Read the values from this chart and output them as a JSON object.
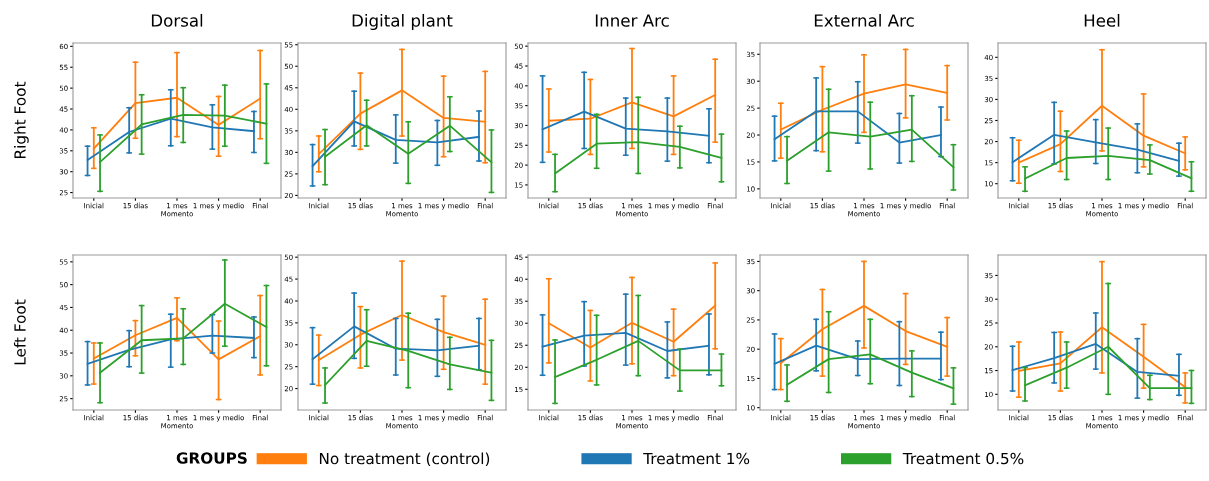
{
  "chart_data": [
    {
      "type": "line",
      "title": "Dorsal",
      "ylabel": "Right Foot",
      "xlabel": "Momento",
      "legend": "bottom",
      "legend_title": "GROUPS",
      "categories": [
        "Inicial",
        "15 días",
        "1 mes",
        "1 mes y medio",
        "Final"
      ],
      "ylim": [
        23.7,
        60.8
      ],
      "yticks": [
        25,
        30,
        35,
        40,
        45,
        50,
        55,
        60
      ],
      "series": [
        {
          "name": "No treatment (control)",
          "color": "#ff7f0e",
          "values": [
            35.5,
            46.4,
            47.7,
            41.2,
            47.5
          ],
          "errors": [
            [
              30.8,
              40.5
            ],
            [
              38,
              56.2
            ],
            [
              38.4,
              58.5
            ],
            [
              33.7,
              48
            ],
            [
              37.9,
              59
            ]
          ]
        },
        {
          "name": "Treatment 1%",
          "color": "#1f77b4",
          "values": [
            32.8,
            39.5,
            42.7,
            40.6,
            39.7
          ],
          "errors": [
            [
              29.1,
              36.1
            ],
            [
              34.5,
              45.3
            ],
            [
              36.2,
              49.6
            ],
            [
              35.4,
              46
            ],
            [
              34.6,
              44.4
            ]
          ]
        },
        {
          "name": "Treatment 0.5%",
          "color": "#2ca02c",
          "values": [
            32.3,
            41.3,
            43.6,
            43.4,
            41.5
          ],
          "errors": [
            [
              25.3,
              38.8
            ],
            [
              34.2,
              48.4
            ],
            [
              37,
              50.1
            ],
            [
              36.1,
              50.7
            ],
            [
              32,
              51
            ]
          ]
        }
      ]
    },
    {
      "type": "line",
      "title": "Digital plant",
      "xlabel": "Momento",
      "categories": [
        "Inicial",
        "15 días",
        "1 mes",
        "1 mes y medio",
        "Final"
      ],
      "ylim": [
        19.4,
        55.4
      ],
      "yticks": [
        20,
        25,
        30,
        35,
        40,
        45,
        50,
        55
      ],
      "series": [
        {
          "color": "#ff7f0e",
          "values": [
            29.6,
            39,
            44.4,
            38,
            37.1
          ],
          "errors": [
            [
              25.5,
              33.8
            ],
            [
              30.7,
              48.4
            ],
            [
              33.8,
              53.9
            ],
            [
              29,
              47.7
            ],
            [
              27.6,
              48.8
            ]
          ]
        },
        {
          "color": "#1f77b4",
          "values": [
            26.8,
            37.2,
            32.9,
            32.3,
            33.6
          ],
          "errors": [
            [
              22.2,
              31.8
            ],
            [
              31.5,
              44.2
            ],
            [
              27.5,
              38.7
            ],
            [
              27,
              37.4
            ],
            [
              28,
              39.6
            ]
          ]
        },
        {
          "color": "#2ca02c",
          "values": [
            29,
            36.3,
            29.7,
            36.2,
            27.7
          ],
          "errors": [
            [
              22.5,
              35.3
            ],
            [
              31.5,
              42.1
            ],
            [
              22.8,
              37.1
            ],
            [
              30.2,
              42.9
            ],
            [
              20.7,
              35.2
            ]
          ]
        }
      ]
    },
    {
      "type": "line",
      "title": "Inner Arc",
      "xlabel": "Momento",
      "categories": [
        "Inicial",
        "15 días",
        "1 mes",
        "1 mes y medio",
        "Final"
      ],
      "ylim": [
        11.7,
        50.8
      ],
      "yticks": [
        15,
        20,
        25,
        30,
        35,
        40,
        45,
        50
      ],
      "series": [
        {
          "color": "#ff7f0e",
          "values": [
            31.2,
            31.7,
            35.8,
            32.3,
            37.7
          ],
          "errors": [
            [
              23.3,
              39.2
            ],
            [
              22.7,
              41.6
            ],
            [
              24.2,
              49.4
            ],
            [
              22.7,
              42.5
            ],
            [
              25.8,
              46.7
            ]
          ]
        },
        {
          "color": "#1f77b4",
          "values": [
            29,
            33.5,
            29.2,
            28.5,
            27.4
          ],
          "errors": [
            [
              20.7,
              42.5
            ],
            [
              24.2,
              43.4
            ],
            [
              22.5,
              36.9
            ],
            [
              21,
              36.9
            ],
            [
              20.6,
              34.2
            ]
          ]
        },
        {
          "color": "#2ca02c",
          "values": [
            17.9,
            25.4,
            25.8,
            24.6,
            21.8
          ],
          "errors": [
            [
              13.3,
              22.7
            ],
            [
              19.2,
              32.8
            ],
            [
              17.9,
              37.1
            ],
            [
              19.3,
              29.8
            ],
            [
              15.8,
              27.8
            ]
          ]
        }
      ]
    },
    {
      "type": "line",
      "title": "External Arc",
      "xlabel": "Momento",
      "categories": [
        "Inicial",
        "15 días",
        "1 mes",
        "1 mes y medio",
        "Final"
      ],
      "ylim": [
        8.3,
        37.1
      ],
      "yticks": [
        10,
        15,
        20,
        25,
        30,
        35
      ],
      "series": [
        {
          "color": "#ff7f0e",
          "values": [
            21,
            24.7,
            27.7,
            29.4,
            27.8
          ],
          "errors": [
            [
              15.7,
              25.9
            ],
            [
              16.9,
              32.7
            ],
            [
              20.5,
              34.9
            ],
            [
              23.2,
              35.9
            ],
            [
              22.8,
              32.9
            ]
          ]
        },
        {
          "color": "#1f77b4",
          "values": [
            19.2,
            24.4,
            24.4,
            18.6,
            20
          ],
          "errors": [
            [
              15.2,
              23.5
            ],
            [
              17.1,
              30.6
            ],
            [
              18.5,
              29.9
            ],
            [
              14.8,
              24
            ],
            [
              16,
              25.2
            ]
          ]
        },
        {
          "color": "#2ca02c",
          "values": [
            15.2,
            20.5,
            19.7,
            21,
            14
          ],
          "errors": [
            [
              11,
              19.7
            ],
            [
              13.3,
              28.5
            ],
            [
              13.7,
              26.1
            ],
            [
              15.1,
              27.3
            ],
            [
              9.8,
              18.2
            ]
          ]
        }
      ]
    },
    {
      "type": "line",
      "title": "Heel",
      "xlabel": "Momento",
      "categories": [
        "Inicial",
        "15 días",
        "1 mes",
        "1 mes y medio",
        "Final"
      ],
      "ylim": [
        6.6,
        43.4
      ],
      "yticks": [
        10,
        15,
        20,
        25,
        30,
        35,
        40
      ],
      "series": [
        {
          "color": "#ff7f0e",
          "values": [
            15,
            19.4,
            28.5,
            21.4,
            17.2
          ],
          "errors": [
            [
              10.1,
              20.3
            ],
            [
              12.9,
              27.2
            ],
            [
              17.8,
              41.8
            ],
            [
              14,
              31.3
            ],
            [
              13.3,
              21.1
            ]
          ]
        },
        {
          "color": "#1f77b4",
          "values": [
            15.1,
            21.6,
            19.8,
            18.1,
            15.4
          ],
          "errors": [
            [
              10.7,
              20.9
            ],
            [
              14.7,
              29.3
            ],
            [
              14.8,
              25.2
            ],
            [
              12.6,
              24.2
            ],
            [
              11.8,
              19.6
            ]
          ]
        },
        {
          "color": "#2ca02c",
          "values": [
            11.2,
            16.1,
            16.6,
            15.6,
            11.3
          ],
          "errors": [
            [
              8.2,
              14
            ],
            [
              11,
              22.5
            ],
            [
              11,
              23.2
            ],
            [
              12.3,
              19.2
            ],
            [
              8.2,
              15.2
            ]
          ]
        }
      ]
    },
    {
      "type": "line",
      "ylabel": "Left Foot",
      "xlabel": "Momento",
      "categories": [
        "Inicial",
        "15 días",
        "1 mes",
        "1 mes y medio",
        "Final"
      ],
      "ylim": [
        22.5,
        56.5
      ],
      "yticks": [
        25,
        30,
        35,
        40,
        45,
        50,
        55
      ],
      "series": [
        {
          "color": "#ff7f0e",
          "values": [
            33.8,
            38.9,
            42.7,
            33.6,
            38.7
          ],
          "errors": [
            [
              28.2,
              37.2
            ],
            [
              34.4,
              42.1
            ],
            [
              37.7,
              47.1
            ],
            [
              24.8,
              42
            ],
            [
              30.2,
              47.6
            ]
          ]
        },
        {
          "color": "#1f77b4",
          "values": [
            32.6,
            35.7,
            38,
            38.8,
            38.3
          ],
          "errors": [
            [
              28,
              37.5
            ],
            [
              32,
              39.9
            ],
            [
              31.9,
              43.5
            ],
            [
              35,
              43.4
            ],
            [
              34,
              42.9
            ]
          ]
        },
        {
          "color": "#2ca02c",
          "values": [
            30.7,
            37.8,
            38.2,
            45.8,
            40.7
          ],
          "errors": [
            [
              24.1,
              37.2
            ],
            [
              30.6,
              45.4
            ],
            [
              32.5,
              44.7
            ],
            [
              36.5,
              55.4
            ],
            [
              32.2,
              49.8
            ]
          ]
        }
      ]
    },
    {
      "type": "line",
      "xlabel": "Momento",
      "categories": [
        "Inicial",
        "15 días",
        "1 mes",
        "1 mes y medio",
        "Final"
      ],
      "ylim": [
        15.1,
        50.5
      ],
      "yticks": [
        20,
        25,
        30,
        35,
        40,
        45,
        50
      ],
      "series": [
        {
          "color": "#ff7f0e",
          "values": [
            26.5,
            32.3,
            36.8,
            32.9,
            30
          ],
          "errors": [
            [
              20.7,
              32.2
            ],
            [
              24.7,
              38.7
            ],
            [
              26.5,
              49.1
            ],
            [
              24.4,
              41.1
            ],
            [
              21,
              40.4
            ]
          ]
        },
        {
          "color": "#1f77b4",
          "values": [
            26.7,
            34.2,
            29.1,
            28.7,
            29.8
          ],
          "errors": [
            [
              21,
              33.9
            ],
            [
              26.9,
              41.8
            ],
            [
              23.1,
              36
            ],
            [
              22.8,
              35.8
            ],
            [
              24.3,
              36
            ]
          ]
        },
        {
          "color": "#2ca02c",
          "values": [
            20.8,
            30.9,
            28.6,
            25.5,
            23.6
          ],
          "errors": [
            [
              16.7,
              24.7
            ],
            [
              25.1,
              38
            ],
            [
              20.2,
              37.2
            ],
            [
              19.8,
              31.7
            ],
            [
              17.3,
              31
            ]
          ]
        }
      ]
    },
    {
      "type": "line",
      "xlabel": "Momento",
      "categories": [
        "Inicial",
        "15 días",
        "1 mes",
        "1 mes y medio",
        "Final"
      ],
      "ylim": [
        10.3,
        45.5
      ],
      "yticks": [
        15,
        20,
        25,
        30,
        35,
        40,
        45
      ],
      "series": [
        {
          "color": "#ff7f0e",
          "values": [
            30,
            24.5,
            30.1,
            25.8,
            34
          ],
          "errors": [
            [
              21,
              40.1
            ],
            [
              16.9,
              32.9
            ],
            [
              20.8,
              40.4
            ],
            [
              18.1,
              33.2
            ],
            [
              24.2,
              43.7
            ]
          ]
        },
        {
          "color": "#1f77b4",
          "values": [
            24.7,
            27.2,
            27.8,
            23.7,
            24.9
          ],
          "errors": [
            [
              18.2,
              31.9
            ],
            [
              20.3,
              34.9
            ],
            [
              20.5,
              36.6
            ],
            [
              17.6,
              30.3
            ],
            [
              18.3,
              32.1
            ]
          ]
        },
        {
          "color": "#2ca02c",
          "values": [
            17.8,
            21.7,
            26,
            19.3,
            19.3
          ],
          "errors": [
            [
              11.8,
              26.2
            ],
            [
              16,
              31.8
            ],
            [
              18.1,
              36.3
            ],
            [
              14.6,
              24.1
            ],
            [
              15.8,
              23
            ]
          ]
        }
      ]
    },
    {
      "type": "line",
      "xlabel": "Momento",
      "categories": [
        "Inicial",
        "15 días",
        "1 mes",
        "1 mes y medio",
        "Final"
      ],
      "ylim": [
        9.6,
        36.1
      ],
      "yticks": [
        10,
        15,
        20,
        25,
        30,
        35
      ],
      "series": [
        {
          "color": "#ff7f0e",
          "values": [
            17.6,
            23.4,
            27.4,
            23.1,
            20.4
          ],
          "errors": [
            [
              13.1,
              21.8
            ],
            [
              15.4,
              30.2
            ],
            [
              20.2,
              35
            ],
            [
              17.4,
              29.5
            ],
            [
              15.4,
              25.4
            ]
          ]
        },
        {
          "color": "#1f77b4",
          "values": [
            17.5,
            20.6,
            18.3,
            18.4,
            18.4
          ],
          "errors": [
            [
              13.1,
              22.6
            ],
            [
              16.3,
              25.1
            ],
            [
              15.5,
              21.4
            ],
            [
              13.8,
              24.7
            ],
            [
              14.8,
              22.9
            ]
          ]
        },
        {
          "color": "#2ca02c",
          "values": [
            13.9,
            18.3,
            19.1,
            16,
            13.3
          ],
          "errors": [
            [
              11.1,
              17.3
            ],
            [
              12.6,
              26.4
            ],
            [
              14.1,
              25.1
            ],
            [
              11.9,
              19.7
            ],
            [
              10.6,
              16.8
            ]
          ]
        }
      ]
    },
    {
      "type": "line",
      "xlabel": "Momento",
      "categories": [
        "Inicial",
        "15 días",
        "1 mes",
        "1 mes y medio",
        "Final"
      ],
      "ylim": [
        6.7,
        39.3
      ],
      "yticks": [
        10,
        15,
        20,
        25,
        30,
        35
      ],
      "series": [
        {
          "color": "#ff7f0e",
          "values": [
            14.9,
            16.5,
            24.1,
            17.9,
            11.5
          ],
          "errors": [
            [
              9.4,
              21
            ],
            [
              10.7,
              23.1
            ],
            [
              14.5,
              37.9
            ],
            [
              11.3,
              24.7
            ],
            [
              8.2,
              14.5
            ]
          ]
        },
        {
          "color": "#1f77b4",
          "values": [
            15.1,
            17.6,
            20.6,
            14.7,
            13.9
          ],
          "errors": [
            [
              10.7,
              20.1
            ],
            [
              12.4,
              23
            ],
            [
              15.3,
              27.1
            ],
            [
              9.2,
              21.7
            ],
            [
              9.8,
              18.4
            ]
          ]
        },
        {
          "color": "#2ca02c",
          "values": [
            11.9,
            15.6,
            20,
            11.3,
            11.3
          ],
          "errors": [
            [
              8.6,
              15.6
            ],
            [
              11.3,
              21
            ],
            [
              10,
              33.3
            ],
            [
              8.9,
              14
            ],
            [
              8.1,
              15
            ]
          ]
        }
      ]
    }
  ]
}
